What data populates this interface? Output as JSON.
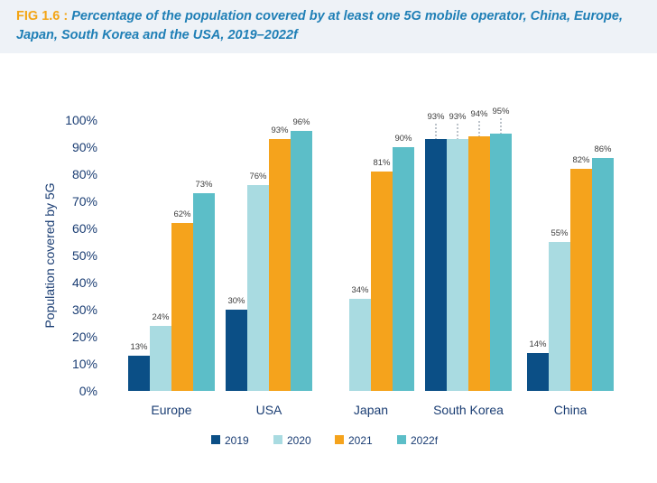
{
  "header": {
    "fig_label": "FIG 1.6 :",
    "title": "Percentage of the population covered by at least one 5G mobile operator, China, Europe, Japan, South Korea and the USA, 2019–2022f"
  },
  "chart_data": {
    "type": "bar",
    "categories": [
      "Europe",
      "USA",
      "Japan",
      "South Korea",
      "China"
    ],
    "series": [
      {
        "name": "2019",
        "color": "#0b4f86",
        "values": [
          13,
          30,
          null,
          93,
          14
        ]
      },
      {
        "name": "2020",
        "color": "#a9dbe1",
        "values": [
          24,
          76,
          34,
          93,
          55
        ]
      },
      {
        "name": "2021",
        "color": "#f5a31c",
        "values": [
          62,
          93,
          81,
          94,
          82
        ]
      },
      {
        "name": "2022f",
        "color": "#5cbec8",
        "values": [
          73,
          96,
          90,
          95,
          86
        ]
      }
    ],
    "ylabel": "Population covered by 5G",
    "ylim": [
      0,
      100
    ],
    "yticks": [
      "0%",
      "10%",
      "20%",
      "30%",
      "40%",
      "50%",
      "60%",
      "70%",
      "80%",
      "90%",
      "100%"
    ],
    "value_suffix": "%",
    "legend_position": "bottom",
    "grid": false
  }
}
